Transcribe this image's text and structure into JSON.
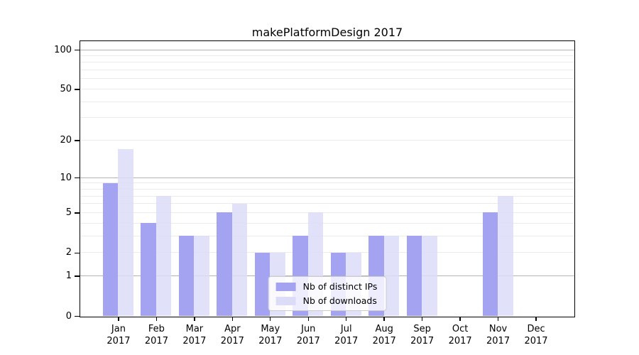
{
  "title": "makePlatformDesign 2017",
  "chart_data": {
    "type": "bar",
    "title": "makePlatformDesign 2017",
    "year_label": "2017",
    "categories": [
      "Jan 2017",
      "Feb 2017",
      "Mar 2017",
      "Apr 2017",
      "May 2017",
      "Jun 2017",
      "Jul 2017",
      "Aug 2017",
      "Sep 2017",
      "Oct 2017",
      "Nov 2017",
      "Dec 2017"
    ],
    "months": [
      "Jan",
      "Feb",
      "Mar",
      "Apr",
      "May",
      "Jun",
      "Jul",
      "Aug",
      "Sep",
      "Oct",
      "Nov",
      "Dec"
    ],
    "series": [
      {
        "name": "Nb of distinct IPs",
        "color": "#a3a3f2",
        "values": [
          9,
          4,
          3,
          5,
          2,
          3,
          2,
          3,
          3,
          0,
          5,
          0
        ]
      },
      {
        "name": "Nb of downloads",
        "color": "#dcdcf9",
        "values": [
          17,
          7,
          3,
          6,
          2,
          5,
          2,
          3,
          3,
          0,
          7,
          0
        ]
      }
    ],
    "xlabel": "",
    "ylabel": "",
    "yscale": "log1p",
    "ylim": [
      0,
      100
    ],
    "yticks": [
      0,
      1,
      2,
      5,
      10,
      20,
      50,
      100
    ],
    "major_gridlines": [
      1,
      10,
      100
    ],
    "minor_gridlines": [
      2,
      3,
      4,
      5,
      6,
      7,
      8,
      9,
      20,
      30,
      40,
      50,
      60,
      70,
      80,
      90
    ],
    "grid": "on",
    "legend_position": "lower center",
    "colors": {
      "spine": "#000000",
      "grid_major": "#b3b3b3",
      "grid_minor": "#ebebeb",
      "legend_border": "#cccccc"
    }
  }
}
